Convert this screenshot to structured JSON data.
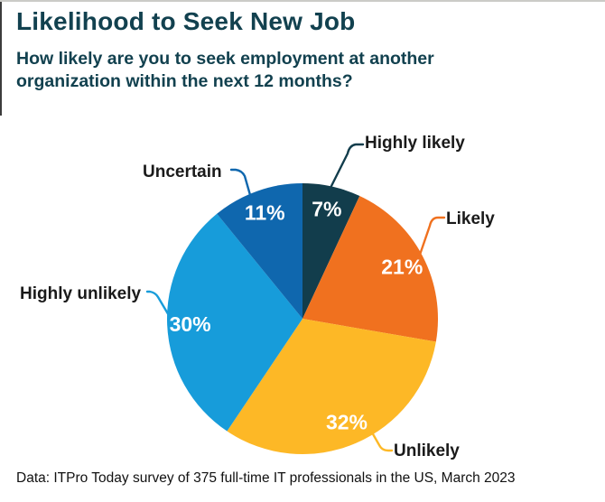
{
  "page": {
    "background": "#ffffff",
    "top_edge_color": "#cbcbc7",
    "left_edge_color": "#3c3c3c"
  },
  "header": {
    "title": "Likelihood to Seek New Job",
    "subtitle": "How likely are you to seek employment at another organization within the next 12 months?",
    "text_color": "#12414F"
  },
  "chart_data": {
    "type": "pie",
    "title": "Likelihood to Seek New Job",
    "subtitle": "How likely are you to seek employment at another organization within the next 12 months?",
    "start_angle_deg": 0,
    "direction": "clockwise",
    "slices": [
      {
        "label": "Highly likely",
        "value": 7,
        "display": "7%",
        "color": "#123D4C"
      },
      {
        "label": "Likely",
        "value": 21,
        "display": "21%",
        "color": "#F0711F"
      },
      {
        "label": "Unlikely",
        "value": 32,
        "display": "32%",
        "color": "#FDB826"
      },
      {
        "label": "Highly unlikely",
        "value": 30,
        "display": "30%",
        "color": "#179CDA"
      },
      {
        "label": "Uncertain",
        "value": 11,
        "display": "11%",
        "color": "#0F67AE"
      }
    ],
    "value_label_color": "#ffffff",
    "category_label_color": "#1a1a1a",
    "legend_position": "callout-labels",
    "footnote": "Data: ITPro Today survey of 375 full-time IT professionals in the US, March 2023"
  },
  "footer": {
    "source": "Data: ITPro Today survey of 375 full-time IT professionals in the US, March 2023"
  }
}
